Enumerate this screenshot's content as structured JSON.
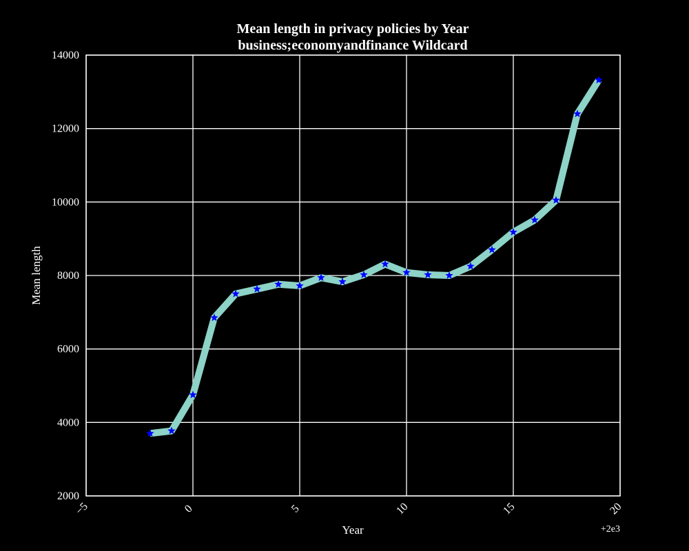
{
  "chart_data": {
    "type": "line",
    "title": "Mean length in privacy policies by Year",
    "subtitle": "business;economyandfinance Wildcard",
    "xlabel": "Year",
    "ylabel": "Mean length",
    "x_offset_label": "+2e3",
    "xlim": [
      -5,
      20
    ],
    "ylim": [
      2000,
      14000
    ],
    "xticks": [
      -5,
      0,
      5,
      10,
      15,
      20
    ],
    "xtick_labels": [
      "−5",
      "0",
      "5",
      "10",
      "15",
      "20"
    ],
    "yticks": [
      2000,
      4000,
      6000,
      8000,
      10000,
      12000,
      14000
    ],
    "ytick_labels": [
      "2000",
      "4000",
      "6000",
      "8000",
      "10000",
      "12000",
      "14000"
    ],
    "grid": true,
    "line_color": "#8dd3c7",
    "marker_color": "#0000ff",
    "background": "#000000",
    "foreground": "#ffffff",
    "series": [
      {
        "x": [
          -2,
          -1,
          0,
          1,
          2,
          3,
          4,
          5,
          6,
          7,
          8,
          9,
          10,
          11,
          12,
          13,
          14,
          15,
          16,
          17,
          18,
          19
        ],
        "values": [
          3700,
          3770,
          4750,
          6850,
          7500,
          7630,
          7760,
          7720,
          7940,
          7830,
          8020,
          8310,
          8080,
          8020,
          8000,
          8250,
          8700,
          9180,
          9510,
          10050,
          12400,
          13320
        ]
      }
    ]
  }
}
